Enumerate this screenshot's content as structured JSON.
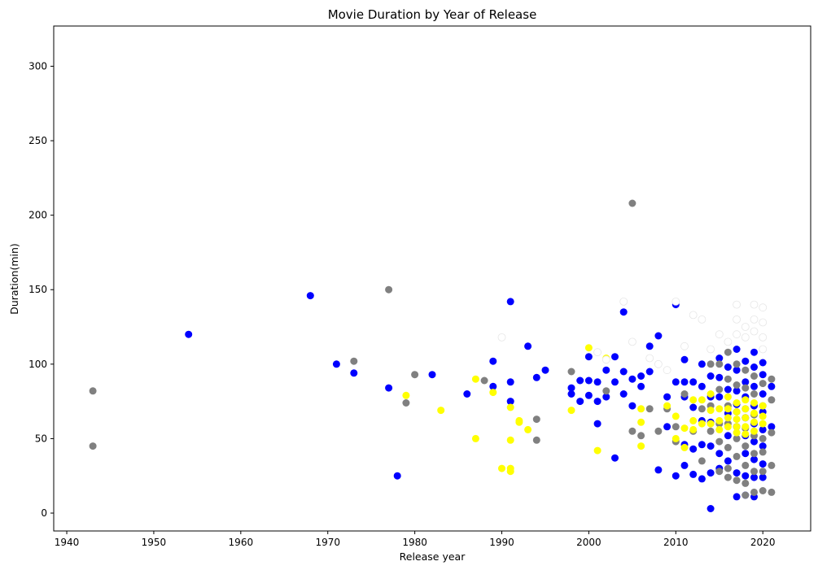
{
  "chart_data": {
    "type": "scatter",
    "title": "Movie Duration by Year of Release",
    "xlabel": "Release year",
    "ylabel": "Duration(min)",
    "xlim": [
      1938.5,
      2025.5
    ],
    "ylim": [
      -12,
      327
    ],
    "xticks": [
      1940,
      1950,
      1960,
      1970,
      1980,
      1990,
      2000,
      2010,
      2020
    ],
    "yticks": [
      0,
      50,
      100,
      150,
      200,
      250,
      300
    ],
    "grid": false,
    "legend": "none",
    "colors": {
      "blue": "#0000ff",
      "gray": "#808080",
      "yellow": "#ffff00",
      "white": "#ffffff"
    },
    "series": [
      {
        "color": "blue",
        "points": [
          [
            1954,
            120
          ],
          [
            1968,
            146
          ],
          [
            1971,
            100
          ],
          [
            1973,
            94
          ],
          [
            1977,
            84
          ],
          [
            1978,
            25
          ],
          [
            1982,
            93
          ],
          [
            1986,
            80
          ],
          [
            1989,
            102
          ],
          [
            1989,
            85
          ],
          [
            1991,
            142
          ],
          [
            1991,
            88
          ],
          [
            1991,
            75
          ],
          [
            1993,
            112
          ],
          [
            1994,
            91
          ],
          [
            1995,
            96
          ],
          [
            1998,
            80
          ],
          [
            1998,
            84
          ],
          [
            1999,
            89
          ],
          [
            1999,
            75
          ],
          [
            2000,
            105
          ],
          [
            2000,
            89
          ],
          [
            2000,
            79
          ],
          [
            2001,
            88
          ],
          [
            2001,
            75
          ],
          [
            2001,
            60
          ],
          [
            2002,
            96
          ],
          [
            2002,
            78
          ],
          [
            2003,
            105
          ],
          [
            2003,
            88
          ],
          [
            2003,
            37
          ],
          [
            2004,
            135
          ],
          [
            2004,
            95
          ],
          [
            2004,
            80
          ],
          [
            2005,
            90
          ],
          [
            2005,
            72
          ],
          [
            2006,
            92
          ],
          [
            2006,
            85
          ],
          [
            2007,
            112
          ],
          [
            2007,
            95
          ],
          [
            2008,
            119
          ],
          [
            2008,
            100
          ],
          [
            2008,
            29
          ],
          [
            2009,
            78
          ],
          [
            2009,
            58
          ],
          [
            2010,
            140
          ],
          [
            2010,
            88
          ],
          [
            2010,
            25
          ],
          [
            2011,
            103
          ],
          [
            2011,
            88
          ],
          [
            2011,
            78
          ],
          [
            2011,
            46
          ],
          [
            2011,
            32
          ],
          [
            2012,
            88
          ],
          [
            2012,
            71
          ],
          [
            2012,
            43
          ],
          [
            2012,
            26
          ],
          [
            2013,
            100
          ],
          [
            2013,
            85
          ],
          [
            2013,
            62
          ],
          [
            2013,
            46
          ],
          [
            2013,
            23
          ],
          [
            2014,
            92
          ],
          [
            2014,
            78
          ],
          [
            2014,
            61
          ],
          [
            2014,
            45
          ],
          [
            2014,
            27
          ],
          [
            2014,
            3
          ],
          [
            2015,
            104
          ],
          [
            2015,
            91
          ],
          [
            2015,
            78
          ],
          [
            2015,
            40
          ],
          [
            2015,
            30
          ],
          [
            2016,
            98
          ],
          [
            2016,
            83
          ],
          [
            2016,
            67
          ],
          [
            2016,
            52
          ],
          [
            2016,
            35
          ],
          [
            2017,
            110
          ],
          [
            2017,
            96
          ],
          [
            2017,
            82
          ],
          [
            2017,
            73
          ],
          [
            2017,
            58
          ],
          [
            2017,
            27
          ],
          [
            2017,
            11
          ],
          [
            2018,
            102
          ],
          [
            2018,
            88
          ],
          [
            2018,
            78
          ],
          [
            2018,
            64
          ],
          [
            2018,
            52
          ],
          [
            2018,
            40
          ],
          [
            2018,
            25
          ],
          [
            2018,
            12
          ],
          [
            2019,
            108
          ],
          [
            2019,
            98
          ],
          [
            2019,
            85
          ],
          [
            2019,
            72
          ],
          [
            2019,
            60
          ],
          [
            2019,
            48
          ],
          [
            2019,
            36
          ],
          [
            2019,
            24
          ],
          [
            2019,
            11
          ],
          [
            2020,
            101
          ],
          [
            2020,
            93
          ],
          [
            2020,
            80
          ],
          [
            2020,
            68
          ],
          [
            2020,
            56
          ],
          [
            2020,
            45
          ],
          [
            2020,
            33
          ],
          [
            2020,
            24
          ],
          [
            2021,
            85
          ],
          [
            2021,
            58
          ]
        ]
      },
      {
        "color": "gray",
        "points": [
          [
            1943,
            82
          ],
          [
            1943,
            45
          ],
          [
            1973,
            102
          ],
          [
            1977,
            150
          ],
          [
            1979,
            74
          ],
          [
            1980,
            93
          ],
          [
            1988,
            89
          ],
          [
            1994,
            63
          ],
          [
            1994,
            49
          ],
          [
            1998,
            95
          ],
          [
            2002,
            82
          ],
          [
            2005,
            208
          ],
          [
            2005,
            55
          ],
          [
            2006,
            52
          ],
          [
            2007,
            70
          ],
          [
            2008,
            55
          ],
          [
            2009,
            70
          ],
          [
            2010,
            58
          ],
          [
            2010,
            48
          ],
          [
            2011,
            80
          ],
          [
            2012,
            55
          ],
          [
            2013,
            70
          ],
          [
            2013,
            35
          ],
          [
            2014,
            100
          ],
          [
            2014,
            72
          ],
          [
            2014,
            55
          ],
          [
            2015,
            100
          ],
          [
            2015,
            83
          ],
          [
            2015,
            60
          ],
          [
            2015,
            48
          ],
          [
            2015,
            28
          ],
          [
            2016,
            108
          ],
          [
            2016,
            90
          ],
          [
            2016,
            72
          ],
          [
            2016,
            60
          ],
          [
            2016,
            44
          ],
          [
            2016,
            30
          ],
          [
            2016,
            24
          ],
          [
            2017,
            100
          ],
          [
            2017,
            86
          ],
          [
            2017,
            68
          ],
          [
            2017,
            50
          ],
          [
            2017,
            38
          ],
          [
            2017,
            22
          ],
          [
            2018,
            96
          ],
          [
            2018,
            84
          ],
          [
            2018,
            70
          ],
          [
            2018,
            57
          ],
          [
            2018,
            45
          ],
          [
            2018,
            32
          ],
          [
            2018,
            20
          ],
          [
            2018,
            12
          ],
          [
            2019,
            92
          ],
          [
            2019,
            80
          ],
          [
            2019,
            66
          ],
          [
            2019,
            52
          ],
          [
            2019,
            40
          ],
          [
            2019,
            28
          ],
          [
            2019,
            14
          ],
          [
            2020,
            87
          ],
          [
            2020,
            72
          ],
          [
            2020,
            50
          ],
          [
            2020,
            41
          ],
          [
            2020,
            28
          ],
          [
            2020,
            15
          ],
          [
            2021,
            90
          ],
          [
            2021,
            76
          ],
          [
            2021,
            54
          ],
          [
            2021,
            32
          ],
          [
            2021,
            14
          ]
        ]
      },
      {
        "color": "yellow",
        "points": [
          [
            1979,
            79
          ],
          [
            1983,
            69
          ],
          [
            1987,
            90
          ],
          [
            1987,
            50
          ],
          [
            1989,
            81
          ],
          [
            1990,
            30
          ],
          [
            1991,
            71
          ],
          [
            1991,
            49
          ],
          [
            1991,
            30
          ],
          [
            1991,
            28
          ],
          [
            1992,
            62
          ],
          [
            1992,
            61
          ],
          [
            1993,
            56
          ],
          [
            1998,
            69
          ],
          [
            2000,
            111
          ],
          [
            2001,
            42
          ],
          [
            2002,
            104
          ],
          [
            2006,
            70
          ],
          [
            2006,
            61
          ],
          [
            2006,
            45
          ],
          [
            2009,
            72
          ],
          [
            2010,
            65
          ],
          [
            2010,
            50
          ],
          [
            2011,
            57
          ],
          [
            2011,
            44
          ],
          [
            2012,
            76
          ],
          [
            2012,
            62
          ],
          [
            2012,
            56
          ],
          [
            2013,
            76
          ],
          [
            2013,
            60
          ],
          [
            2014,
            80
          ],
          [
            2014,
            69
          ],
          [
            2014,
            60
          ],
          [
            2015,
            70
          ],
          [
            2015,
            62
          ],
          [
            2015,
            56
          ],
          [
            2016,
            78
          ],
          [
            2016,
            70
          ],
          [
            2016,
            64
          ],
          [
            2016,
            58
          ],
          [
            2017,
            74
          ],
          [
            2017,
            68
          ],
          [
            2017,
            63
          ],
          [
            2017,
            58
          ],
          [
            2017,
            54
          ],
          [
            2018,
            76
          ],
          [
            2018,
            70
          ],
          [
            2018,
            64
          ],
          [
            2018,
            58
          ],
          [
            2018,
            53
          ],
          [
            2019,
            74
          ],
          [
            2019,
            67
          ],
          [
            2019,
            61
          ],
          [
            2019,
            55
          ],
          [
            2020,
            72
          ],
          [
            2020,
            65
          ],
          [
            2020,
            60
          ]
        ]
      },
      {
        "color": "white",
        "points": [
          [
            1990,
            118
          ],
          [
            2001,
            108
          ],
          [
            2002,
            103
          ],
          [
            2004,
            142
          ],
          [
            2005,
            115
          ],
          [
            2007,
            104
          ],
          [
            2008,
            100
          ],
          [
            2009,
            96
          ],
          [
            2010,
            142
          ],
          [
            2011,
            112
          ],
          [
            2012,
            133
          ],
          [
            2013,
            130
          ],
          [
            2014,
            110
          ],
          [
            2015,
            120
          ],
          [
            2016,
            115
          ],
          [
            2017,
            140
          ],
          [
            2017,
            130
          ],
          [
            2017,
            120
          ],
          [
            2018,
            125
          ],
          [
            2018,
            118
          ],
          [
            2019,
            140
          ],
          [
            2019,
            130
          ],
          [
            2019,
            122
          ],
          [
            2020,
            138
          ],
          [
            2020,
            128
          ],
          [
            2020,
            118
          ],
          [
            2020,
            110
          ]
        ]
      }
    ]
  }
}
